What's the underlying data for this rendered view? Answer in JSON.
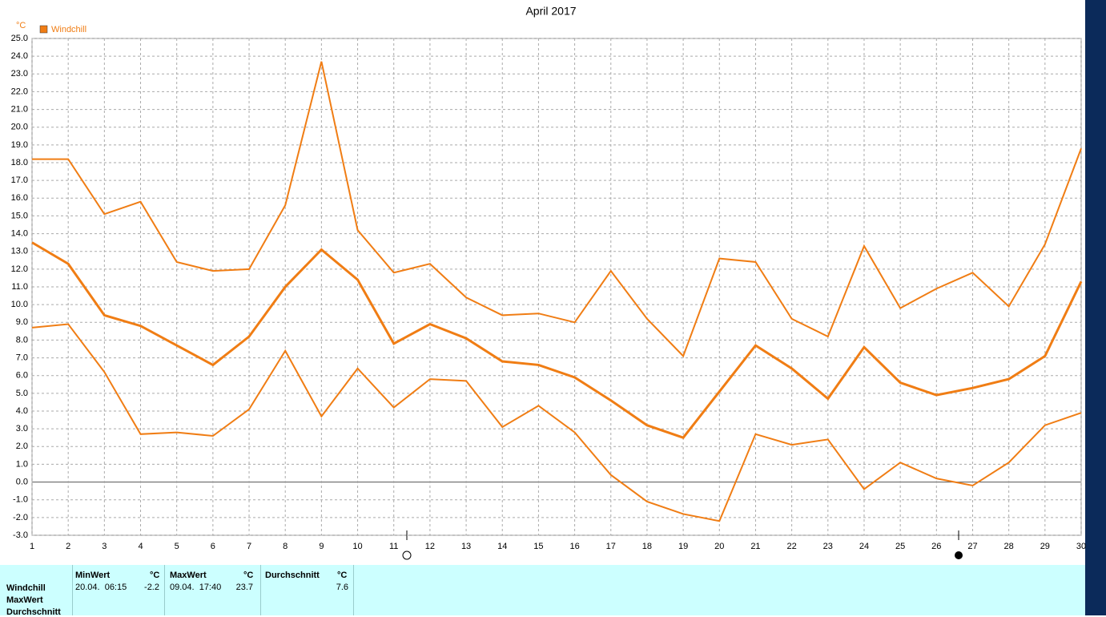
{
  "chart_data": {
    "type": "line",
    "title": "April 2017",
    "y_unit": "°C",
    "x": [
      1,
      2,
      3,
      4,
      5,
      6,
      7,
      8,
      9,
      10,
      11,
      12,
      13,
      14,
      15,
      16,
      17,
      18,
      19,
      20,
      21,
      22,
      23,
      24,
      25,
      26,
      27,
      28,
      29,
      30
    ],
    "xlim": [
      1,
      30
    ],
    "xticks": [
      1,
      2,
      3,
      4,
      5,
      6,
      7,
      8,
      9,
      10,
      11,
      12,
      13,
      14,
      15,
      16,
      17,
      18,
      19,
      20,
      21,
      22,
      23,
      24,
      25,
      26,
      27,
      28,
      29,
      30
    ],
    "ylim": [
      -3,
      25
    ],
    "yticks": [
      {
        "value": -3,
        "label": "-3.0"
      },
      {
        "value": -2,
        "label": "-2.0"
      },
      {
        "value": -1,
        "label": "-1.0"
      },
      {
        "value": 0,
        "label": "0.0"
      },
      {
        "value": 1,
        "label": "1.0"
      },
      {
        "value": 2,
        "label": "2.0"
      },
      {
        "value": 3,
        "label": "3.0"
      },
      {
        "value": 4,
        "label": "4.0"
      },
      {
        "value": 5,
        "label": "5.0"
      },
      {
        "value": 6,
        "label": "6.0"
      },
      {
        "value": 7,
        "label": "7.0"
      },
      {
        "value": 8,
        "label": "8.0"
      },
      {
        "value": 9,
        "label": "9.0"
      },
      {
        "value": 10,
        "label": "10.0"
      },
      {
        "value": 11,
        "label": "11.0"
      },
      {
        "value": 12,
        "label": "12.0"
      },
      {
        "value": 13,
        "label": "13.0"
      },
      {
        "value": 14,
        "label": "14.0"
      },
      {
        "value": 15,
        "label": "15.0"
      },
      {
        "value": 16,
        "label": "16.0"
      },
      {
        "value": 17,
        "label": "17.0"
      },
      {
        "value": 18,
        "label": "18.0"
      },
      {
        "value": 19,
        "label": "19.0"
      },
      {
        "value": 20,
        "label": "20.0"
      },
      {
        "value": 21,
        "label": "21.0"
      },
      {
        "value": 22,
        "label": "22.0"
      },
      {
        "value": 23,
        "label": "23.0"
      },
      {
        "value": 24,
        "label": "24.0"
      },
      {
        "value": 25,
        "label": "25.0"
      }
    ],
    "grid": true,
    "series": [
      {
        "name": "Windchill",
        "color": "#f07d14",
        "values": [
          18.2,
          18.2,
          15.1,
          15.8,
          12.4,
          11.9,
          12.0,
          15.6,
          23.7,
          14.2,
          11.8,
          12.3,
          10.4,
          9.4,
          9.5,
          9.0,
          11.9,
          9.2,
          7.1,
          12.6,
          12.4,
          9.2,
          8.2,
          13.3,
          9.8,
          10.9,
          11.8,
          9.9,
          13.4,
          18.8
        ]
      },
      {
        "color": "#f07d14",
        "values": [
          13.5,
          12.3,
          9.4,
          8.8,
          7.7,
          6.6,
          8.2,
          11.0,
          13.1,
          11.4,
          7.8,
          8.9,
          8.1,
          6.8,
          6.6,
          5.9,
          4.6,
          3.2,
          2.5,
          5.1,
          7.7,
          6.4,
          4.7,
          7.6,
          5.6,
          4.9,
          5.3,
          5.8,
          7.1,
          11.3
        ]
      },
      {
        "color": "#f07d14",
        "values": [
          8.7,
          8.9,
          6.2,
          2.7,
          2.8,
          2.6,
          4.1,
          7.4,
          3.7,
          6.4,
          4.2,
          5.8,
          5.7,
          3.1,
          4.3,
          2.8,
          0.4,
          -1.1,
          -1.8,
          -2.2,
          2.7,
          2.1,
          2.4,
          -0.4,
          1.1,
          0.2,
          -0.2,
          1.1,
          3.2,
          3.9
        ]
      }
    ]
  },
  "stats": {
    "headers": [
      "MinWert",
      "°C",
      "MaxWert",
      "°C",
      "Durchschnitt",
      "°C"
    ],
    "row_labels": [
      "Windchill",
      "MaxWert",
      "Durchschnitt"
    ],
    "row": [
      "20.04.  06:15",
      -2.2,
      "09.04.  17:40",
      23.7,
      7.6
    ]
  }
}
